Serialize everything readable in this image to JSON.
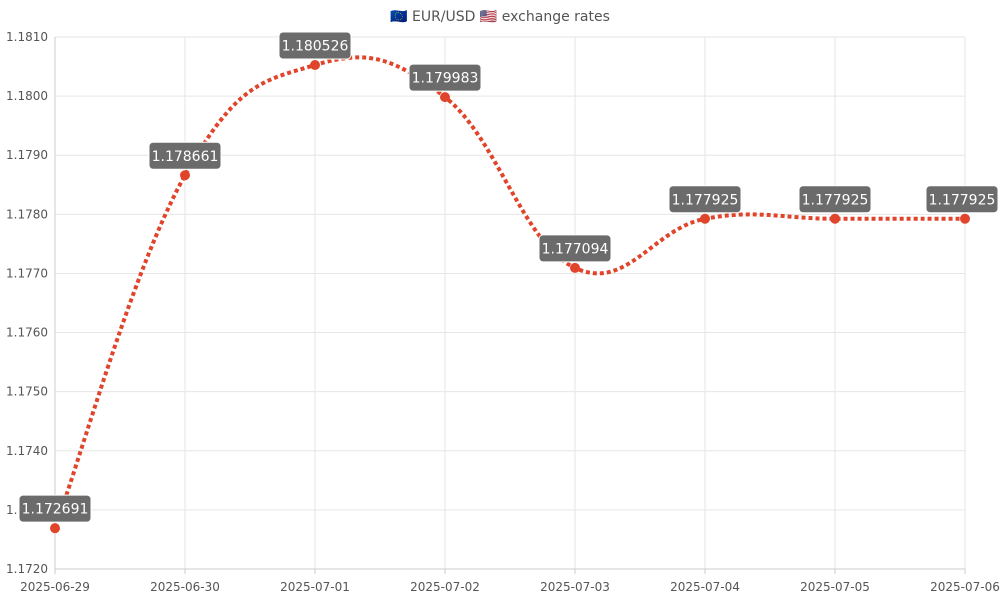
{
  "chart_data": {
    "type": "line",
    "title": "🇪🇺 EUR/USD 🇺🇸 exchange rates",
    "xlabel": "",
    "ylabel": "",
    "x": [
      "2025-06-29",
      "2025-06-30",
      "2025-07-01",
      "2025-07-02",
      "2025-07-03",
      "2025-07-04",
      "2025-07-05",
      "2025-07-06"
    ],
    "series": [
      {
        "values": [
          1.172691,
          1.178661,
          1.180526,
          1.179983,
          1.177094,
          1.177925,
          1.177925,
          1.177925
        ]
      }
    ],
    "data_labels": [
      "1.172691",
      "1.178661",
      "1.180526",
      "1.179983",
      "1.177094",
      "1.177925",
      "1.177925",
      "1.177925"
    ],
    "ylim": [
      1.172,
      1.181
    ],
    "yticks": [
      "1.1720",
      "1.1730",
      "1.1740",
      "1.1750",
      "1.1760",
      "1.1770",
      "1.1780",
      "1.1790",
      "1.1800",
      "1.1810"
    ],
    "grid": true,
    "line_style": "dotted-smooth",
    "colors": {
      "line": "#e0442a",
      "label_bg": "#6b6b6b",
      "label_text": "#ffffff",
      "grid": "#e6e6e6",
      "tick_text": "#555555"
    }
  }
}
